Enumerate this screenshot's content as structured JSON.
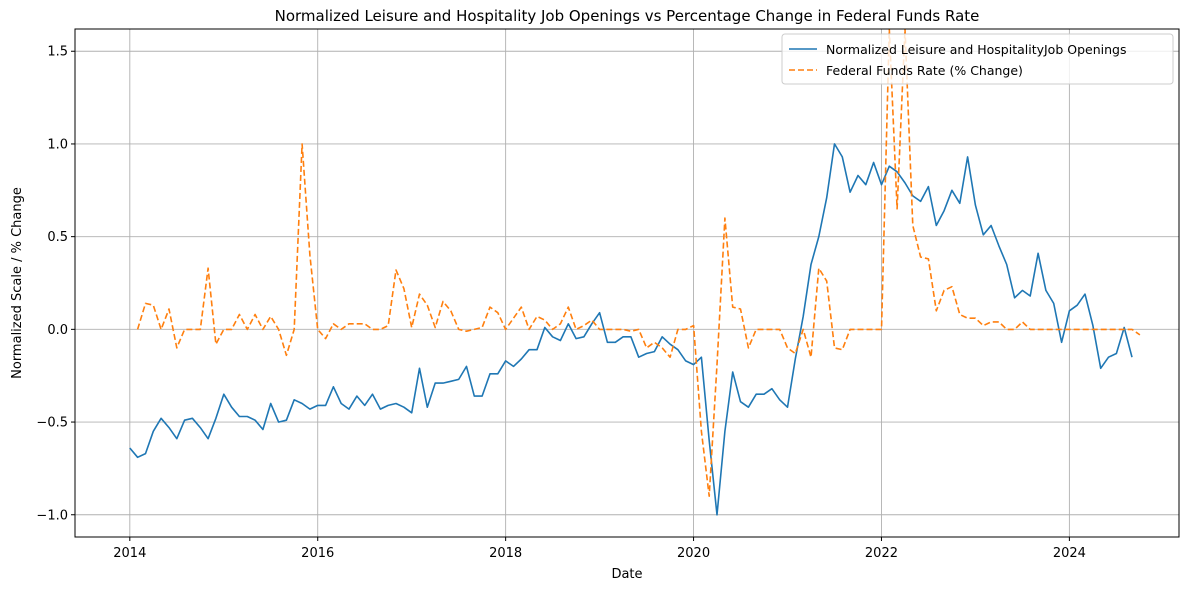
{
  "chart_data": {
    "type": "line",
    "title": "Normalized Leisure and Hospitality Job Openings vs Percentage Change in Federal Funds Rate",
    "xlabel": "Date",
    "ylabel": "Normalized Scale / % Change",
    "xlim": [
      "2013-06",
      "2025-03"
    ],
    "ylim": [
      -1.12,
      1.62
    ],
    "grid": true,
    "legend_position": "upper right",
    "x_ticks": [
      {
        "value": "2014-01",
        "label": "2014"
      },
      {
        "value": "2016-01",
        "label": "2016"
      },
      {
        "value": "2018-01",
        "label": "2018"
      },
      {
        "value": "2020-01",
        "label": "2020"
      },
      {
        "value": "2022-01",
        "label": "2022"
      },
      {
        "value": "2024-01",
        "label": "2024"
      }
    ],
    "y_ticks": [
      {
        "value": -1.0,
        "label": "−1.0"
      },
      {
        "value": -0.5,
        "label": "−0.5"
      },
      {
        "value": 0.0,
        "label": "0.0"
      },
      {
        "value": 0.5,
        "label": "0.5"
      },
      {
        "value": 1.0,
        "label": "1.0"
      },
      {
        "value": 1.5,
        "label": "1.5"
      }
    ],
    "series": [
      {
        "name": "Normalized Leisure and Hospitality\u0001Job Openings",
        "color": "#1f77b4",
        "style": "solid",
        "start": "2014-01",
        "values": [
          -0.64,
          -0.69,
          -0.67,
          -0.55,
          -0.48,
          -0.53,
          -0.59,
          -0.49,
          -0.48,
          -0.53,
          -0.59,
          -0.48,
          -0.35,
          -0.42,
          -0.47,
          -0.47,
          -0.49,
          -0.54,
          -0.4,
          -0.5,
          -0.49,
          -0.38,
          -0.4,
          -0.43,
          -0.41,
          -0.41,
          -0.31,
          -0.4,
          -0.43,
          -0.36,
          -0.41,
          -0.35,
          -0.43,
          -0.41,
          -0.4,
          -0.42,
          -0.45,
          -0.21,
          -0.42,
          -0.29,
          -0.29,
          -0.28,
          -0.27,
          -0.2,
          -0.36,
          -0.36,
          -0.24,
          -0.24,
          -0.17,
          -0.2,
          -0.16,
          -0.11,
          -0.11,
          0.01,
          -0.04,
          -0.06,
          0.03,
          -0.05,
          -0.04,
          0.03,
          0.09,
          -0.07,
          -0.07,
          -0.04,
          -0.04,
          -0.15,
          -0.13,
          -0.12,
          -0.04,
          -0.08,
          -0.11,
          -0.17,
          -0.19,
          -0.15,
          -0.6,
          -1.0,
          -0.55,
          -0.23,
          -0.39,
          -0.42,
          -0.35,
          -0.35,
          -0.32,
          -0.38,
          -0.42,
          -0.16,
          0.07,
          0.35,
          0.5,
          0.71,
          1.0,
          0.93,
          0.74,
          0.83,
          0.78,
          0.9,
          0.78,
          0.88,
          0.85,
          0.79,
          0.72,
          0.69,
          0.77,
          0.56,
          0.64,
          0.75,
          0.68,
          0.93,
          0.67,
          0.51,
          0.56,
          0.45,
          0.35,
          0.17,
          0.21,
          0.18,
          0.41,
          0.21,
          0.14,
          -0.07,
          0.1,
          0.13,
          0.19,
          0.02,
          -0.21,
          -0.15,
          -0.13,
          0.01,
          -0.15
        ]
      },
      {
        "name": "Federal Funds Rate (% Change)",
        "color": "#ff7f0e",
        "style": "dashed",
        "start": "2014-02",
        "values": [
          0.0,
          0.14,
          0.13,
          0.0,
          0.11,
          -0.1,
          0.0,
          0.0,
          0.0,
          0.33,
          -0.08,
          0.0,
          0.0,
          0.08,
          0.0,
          0.08,
          0.0,
          0.07,
          0.0,
          -0.14,
          0.0,
          1.0,
          0.4,
          0.0,
          -0.05,
          0.03,
          0.0,
          0.03,
          0.03,
          0.03,
          0.0,
          0.0,
          0.02,
          0.32,
          0.22,
          0.01,
          0.19,
          0.13,
          0.01,
          0.15,
          0.1,
          0.0,
          -0.01,
          0.0,
          0.01,
          0.12,
          0.09,
          0.0,
          0.06,
          0.12,
          0.0,
          0.07,
          0.05,
          0.0,
          0.03,
          0.12,
          0.0,
          0.02,
          0.05,
          0.0,
          0.0,
          0.0,
          0.0,
          -0.01,
          0.0,
          -0.1,
          -0.07,
          -0.1,
          -0.15,
          0.0,
          0.0,
          0.02,
          -0.55,
          -0.9,
          -0.19,
          0.6,
          0.12,
          0.11,
          -0.1,
          0.0,
          0.0,
          0.0,
          0.0,
          -0.1,
          -0.13,
          0.0,
          -0.15,
          0.33,
          0.26,
          -0.1,
          -0.11,
          0.0,
          0.0,
          0.0,
          0.0,
          0.0,
          1.62,
          0.65,
          1.62,
          0.56,
          0.39,
          0.38,
          0.1,
          0.21,
          0.23,
          0.08,
          0.06,
          0.06,
          0.02,
          0.04,
          0.04,
          0.0,
          0.0,
          0.04,
          0.0,
          0.0,
          0.0,
          0.0,
          0.0,
          0.0,
          0.0,
          0.0,
          0.0,
          0.0,
          0.0,
          0.0,
          0.0,
          0.0,
          -0.03
        ]
      }
    ]
  }
}
